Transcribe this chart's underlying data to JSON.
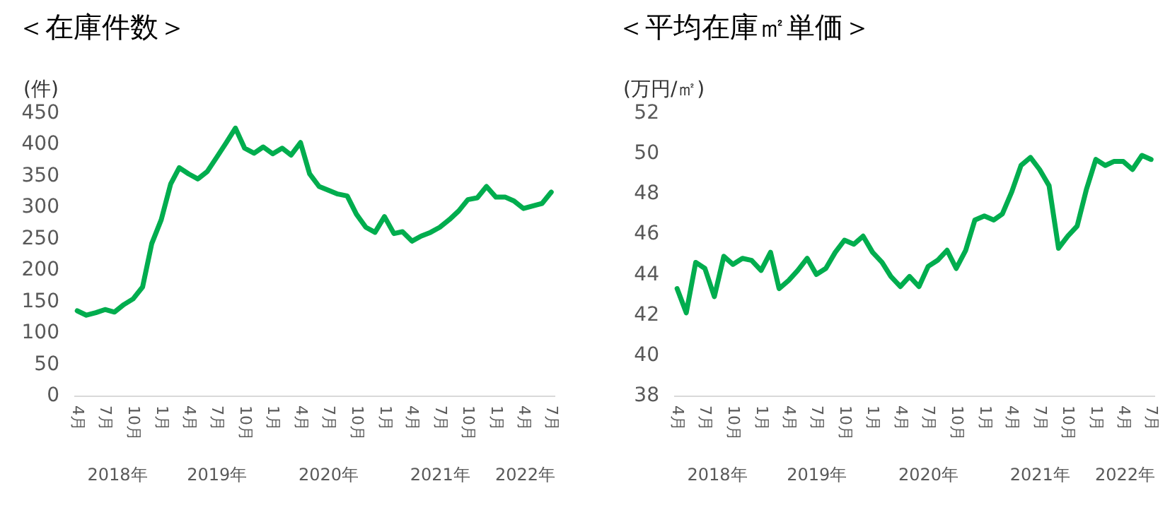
{
  "chart_data": [
    {
      "type": "line",
      "title": "＜在庫件数＞",
      "ylabel": "(件)",
      "color": "#00ad4e",
      "x": [
        "2018-04",
        "2018-05",
        "2018-06",
        "2018-07",
        "2018-08",
        "2018-09",
        "2018-10",
        "2018-11",
        "2018-12",
        "2019-01",
        "2019-02",
        "2019-03",
        "2019-04",
        "2019-05",
        "2019-06",
        "2019-07",
        "2019-08",
        "2019-09",
        "2019-10",
        "2019-11",
        "2019-12",
        "2020-01",
        "2020-02",
        "2020-03",
        "2020-04",
        "2020-05",
        "2020-06",
        "2020-07",
        "2020-08",
        "2020-09",
        "2020-10",
        "2020-11",
        "2020-12",
        "2021-01",
        "2021-02",
        "2021-03",
        "2021-04",
        "2021-05",
        "2021-06",
        "2021-07",
        "2021-08",
        "2021-09",
        "2021-10",
        "2021-11",
        "2021-12",
        "2022-01",
        "2022-02",
        "2022-03",
        "2022-04",
        "2022-05",
        "2022-06",
        "2022-07"
      ],
      "values": [
        135,
        128,
        132,
        137,
        133,
        145,
        154,
        173,
        242,
        280,
        337,
        363,
        353,
        345,
        357,
        379,
        402,
        426,
        394,
        386,
        396,
        385,
        394,
        383,
        403,
        353,
        333,
        327,
        321,
        318,
        289,
        268,
        260,
        285,
        258,
        261,
        246,
        254,
        260,
        268,
        280,
        294,
        312,
        315,
        333,
        316,
        316,
        310,
        298,
        302,
        306,
        324
      ],
      "xlim": [
        "2018-03-20",
        "2022-07-12"
      ],
      "xticks": [
        {
          "value": "2018-04",
          "label": "4月"
        },
        {
          "value": "2018-07",
          "label": "7月"
        },
        {
          "value": "2018-10",
          "label": "10月"
        },
        {
          "value": "2019-01",
          "label": "1月"
        },
        {
          "value": "2019-04",
          "label": "4月"
        },
        {
          "value": "2019-07",
          "label": "7月"
        },
        {
          "value": "2019-10",
          "label": "10月"
        },
        {
          "value": "2020-01",
          "label": "1月"
        },
        {
          "value": "2020-04",
          "label": "4月"
        },
        {
          "value": "2020-07",
          "label": "7月"
        },
        {
          "value": "2020-10",
          "label": "10月"
        },
        {
          "value": "2021-01",
          "label": "1月"
        },
        {
          "value": "2021-04",
          "label": "4月"
        },
        {
          "value": "2021-07",
          "label": "7月"
        },
        {
          "value": "2021-10",
          "label": "10月"
        },
        {
          "value": "2022-01",
          "label": "1月"
        },
        {
          "value": "2022-04",
          "label": "4月"
        },
        {
          "value": "2022-07",
          "label": "7月"
        }
      ],
      "ylim": [
        0,
        450
      ],
      "yticks": [
        0,
        50,
        100,
        150,
        200,
        250,
        300,
        350,
        400,
        450
      ],
      "grid": false,
      "annotations": [
        "2018年",
        "2019年",
        "2020年",
        "2021年",
        "2022年"
      ]
    },
    {
      "type": "line",
      "title": "＜平均在庫㎡単価＞",
      "ylabel": "(万円/㎡)",
      "color": "#00ad4e",
      "x": [
        "2018-04",
        "2018-05",
        "2018-06",
        "2018-07",
        "2018-08",
        "2018-09",
        "2018-10",
        "2018-11",
        "2018-12",
        "2019-01",
        "2019-02",
        "2019-03",
        "2019-04",
        "2019-05",
        "2019-06",
        "2019-07",
        "2019-08",
        "2019-09",
        "2019-10",
        "2019-11",
        "2019-12",
        "2020-01",
        "2020-02",
        "2020-03",
        "2020-04",
        "2020-05",
        "2020-06",
        "2020-07",
        "2020-08",
        "2020-09",
        "2020-10",
        "2020-11",
        "2020-12",
        "2021-01",
        "2021-02",
        "2021-03",
        "2021-04",
        "2021-05",
        "2021-06",
        "2021-07",
        "2021-08",
        "2021-09",
        "2021-10",
        "2021-11",
        "2021-12",
        "2022-01",
        "2022-02",
        "2022-03",
        "2022-04",
        "2022-05",
        "2022-06",
        "2022-07"
      ],
      "values": [
        43.3,
        42.1,
        44.6,
        44.3,
        42.9,
        44.9,
        44.5,
        44.8,
        44.7,
        44.2,
        45.1,
        43.3,
        43.7,
        44.2,
        44.8,
        44.0,
        44.3,
        45.1,
        45.7,
        45.5,
        45.9,
        45.1,
        44.6,
        43.9,
        43.4,
        43.9,
        43.4,
        44.4,
        44.7,
        45.2,
        44.3,
        45.2,
        46.7,
        46.9,
        46.7,
        47.0,
        48.1,
        49.4,
        49.8,
        49.2,
        48.4,
        45.3,
        45.9,
        46.4,
        48.2,
        49.7,
        49.4,
        49.6,
        49.6,
        49.2,
        49.9,
        49.7
      ],
      "xlim": [
        "2018-03-20",
        "2022-07-12"
      ],
      "xticks": [
        {
          "value": "2018-04",
          "label": "4月"
        },
        {
          "value": "2018-07",
          "label": "7月"
        },
        {
          "value": "2018-10",
          "label": "10月"
        },
        {
          "value": "2019-01",
          "label": "1月"
        },
        {
          "value": "2019-04",
          "label": "4月"
        },
        {
          "value": "2019-07",
          "label": "7月"
        },
        {
          "value": "2019-10",
          "label": "10月"
        },
        {
          "value": "2020-01",
          "label": "1月"
        },
        {
          "value": "2020-04",
          "label": "4月"
        },
        {
          "value": "2020-07",
          "label": "7月"
        },
        {
          "value": "2020-10",
          "label": "10月"
        },
        {
          "value": "2021-01",
          "label": "1月"
        },
        {
          "value": "2021-04",
          "label": "4月"
        },
        {
          "value": "2021-07",
          "label": "7月"
        },
        {
          "value": "2021-10",
          "label": "10月"
        },
        {
          "value": "2022-01",
          "label": "1月"
        },
        {
          "value": "2022-04",
          "label": "4月"
        },
        {
          "value": "2022-07",
          "label": "7月"
        }
      ],
      "ylim": [
        38,
        52
      ],
      "yticks": [
        38,
        40,
        42,
        44,
        46,
        48,
        50,
        52
      ],
      "grid": false,
      "annotations": [
        "2018年",
        "2019年",
        "2020年",
        "2021年",
        "2022年"
      ]
    }
  ]
}
